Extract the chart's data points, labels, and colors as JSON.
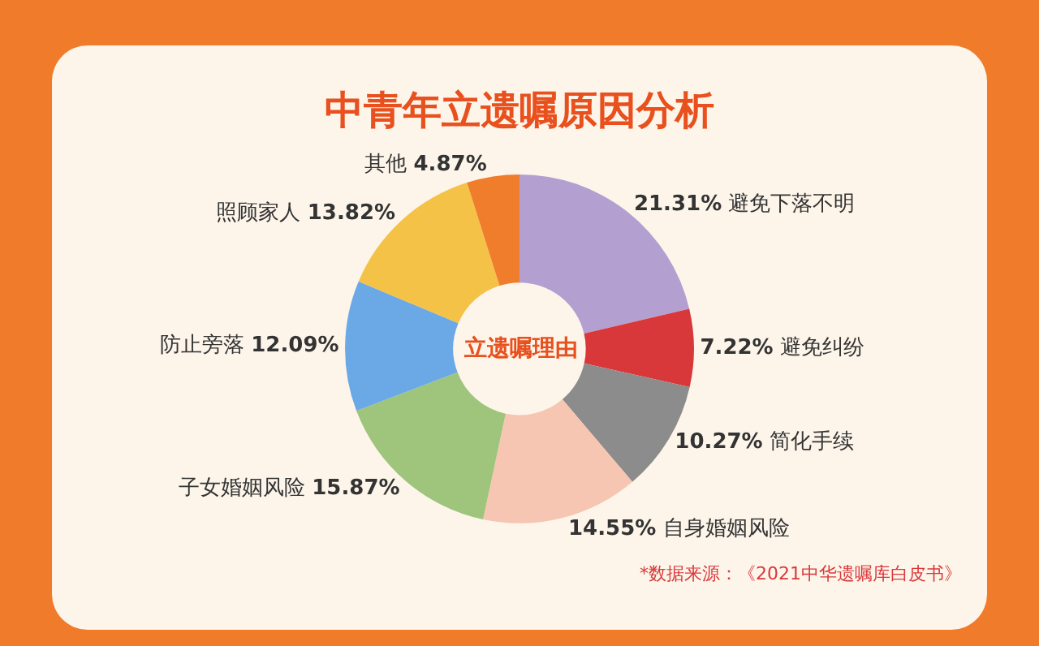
{
  "chart_data": {
    "type": "donut",
    "title": "中青年立遗嘱原因分析",
    "subtitle": "立遗嘱理由",
    "categories": [
      "避免下落不明",
      "避免纠纷",
      "简化手续",
      "自身婚姻风险",
      "子女婚姻风险",
      "防止旁落",
      "照顾家人",
      "其他"
    ],
    "values": [
      21.31,
      7.22,
      10.27,
      14.55,
      15.87,
      12.09,
      13.82,
      4.87
    ],
    "colors": [
      "#b3a0d1",
      "#d9383a",
      "#8c8c8c",
      "#f6c6b2",
      "#9fc47c",
      "#6ba8e6",
      "#f4c247",
      "#f07d2c"
    ],
    "value_labels": [
      "21.31%",
      "7.22%",
      "10.27%",
      "14.55%",
      "15.87%",
      "12.09%",
      "13.82%",
      "4.87%"
    ],
    "legend": false,
    "annotations": [
      "*数据来源：《2021中华遗嘱库白皮书》"
    ]
  }
}
